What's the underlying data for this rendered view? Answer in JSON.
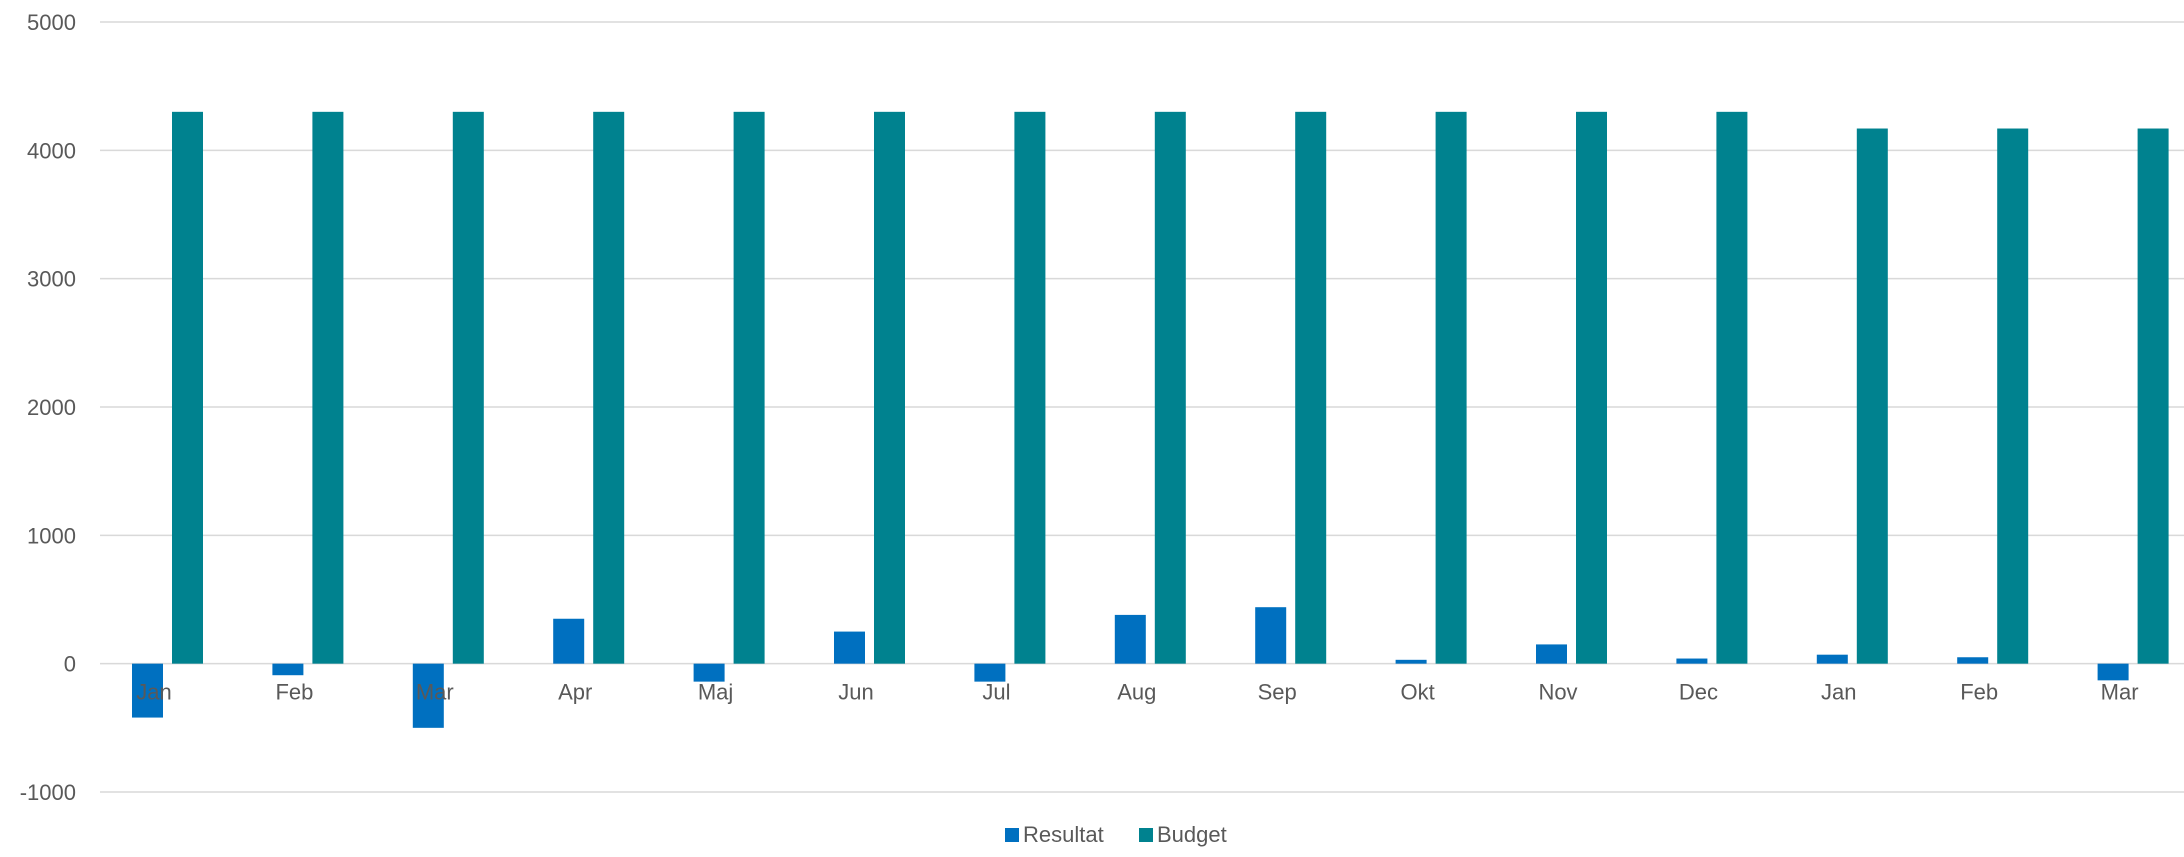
{
  "chart_data": {
    "type": "bar",
    "categories": [
      "Jan",
      "Feb",
      "Mar",
      "Apr",
      "Maj",
      "Jun",
      "Jul",
      "Aug",
      "Sep",
      "Okt",
      "Nov",
      "Dec",
      "Jan",
      "Feb",
      "Mar"
    ],
    "series": [
      {
        "name": "Resultat",
        "color": "#0070c0",
        "values": [
          -420,
          -90,
          -500,
          350,
          -140,
          250,
          -140,
          380,
          440,
          30,
          150,
          40,
          70,
          50,
          -130
        ]
      },
      {
        "name": "Budget",
        "color": "#00828f",
        "values": [
          4300,
          4300,
          4300,
          4300,
          4300,
          4300,
          4300,
          4300,
          4300,
          4300,
          4300,
          4300,
          4170,
          4170,
          4170
        ]
      }
    ],
    "y_ticks": [
      "-1000",
      "0",
      "1000",
      "2000",
      "3000",
      "4000",
      "5000"
    ],
    "ylim": [
      -1000,
      5000
    ],
    "grid": true,
    "legend": "bottom"
  }
}
